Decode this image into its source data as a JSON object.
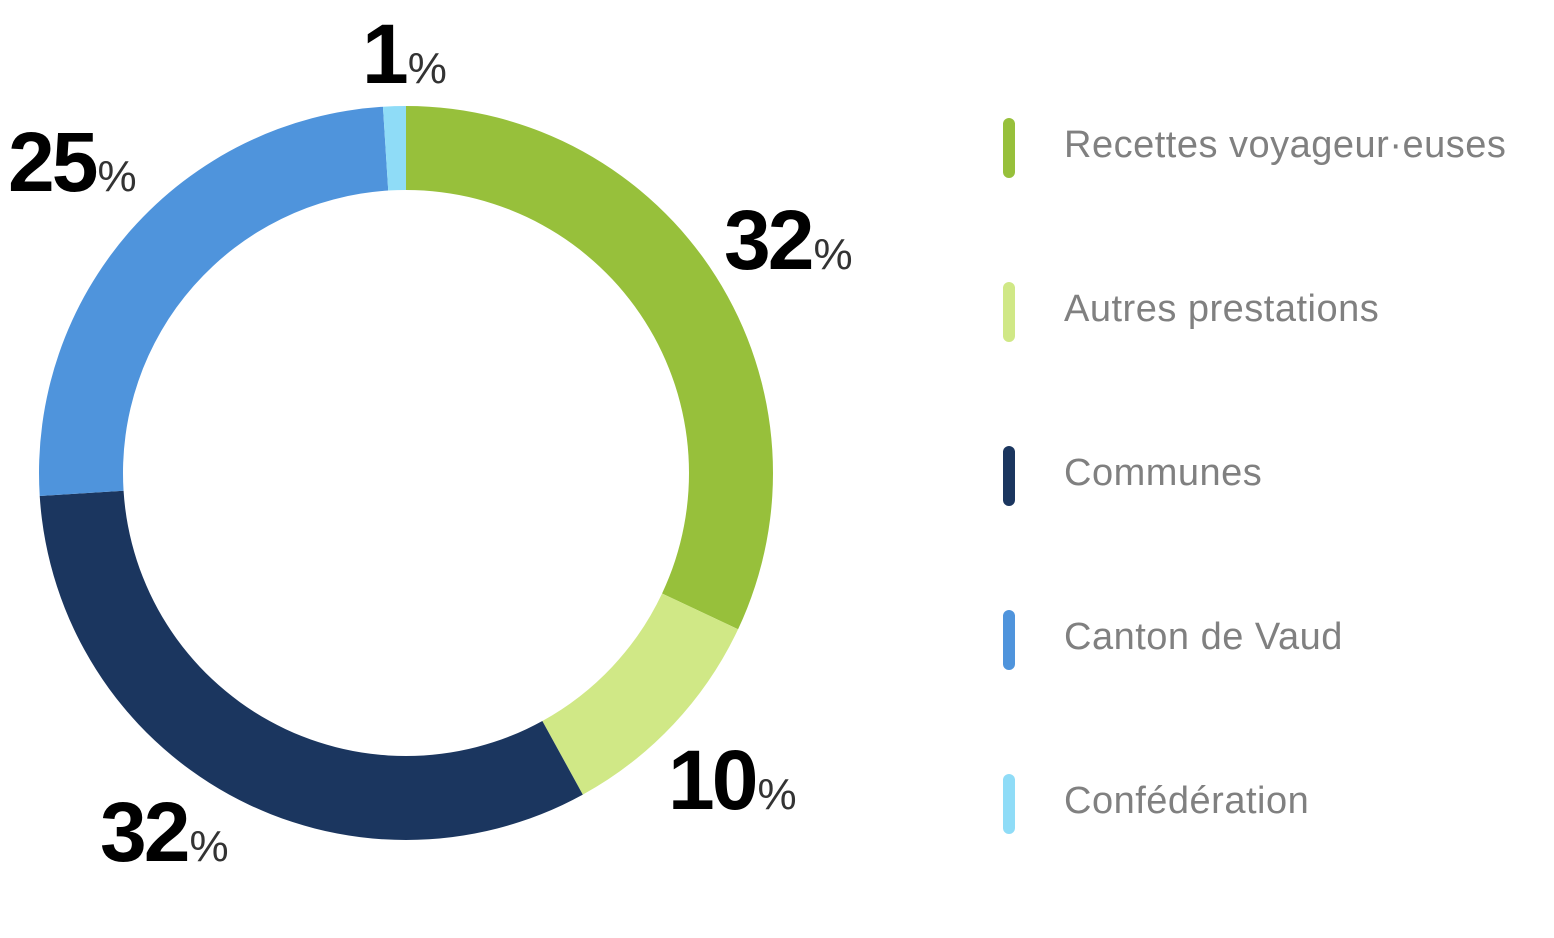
{
  "chart_data": {
    "type": "pie",
    "subtype": "donut",
    "start": "top",
    "direction": "clockwise",
    "categories": [
      "Recettes voyageur·euses",
      "Autres prestations",
      "Communes",
      "Canton de Vaud",
      "Confédération"
    ],
    "values": [
      32,
      10,
      32,
      25,
      1
    ],
    "labels": [
      "32",
      "10",
      "32",
      "25",
      "1"
    ],
    "unit": "%",
    "colors": [
      "#97c03b",
      "#d0e886",
      "#1b365f",
      "#4f94dc",
      "#8fdcf7"
    ],
    "legend_position": "right"
  }
}
